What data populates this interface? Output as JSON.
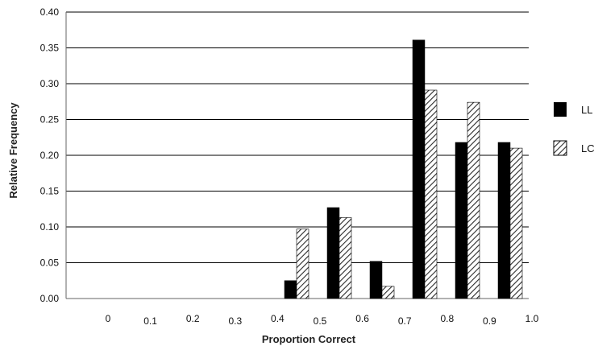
{
  "chart_data": {
    "type": "bar",
    "title": "",
    "xlabel": "Proportion Correct",
    "ylabel": "Relative Frequency",
    "ylim": [
      0,
      0.4
    ],
    "yticks": [
      "0.00",
      "0.05",
      "0.10",
      "0.15",
      "0.20",
      "0.25",
      "0.30",
      "0.35",
      "0.40"
    ],
    "xticks": [
      "0",
      "0.1",
      "0.2",
      "0.3",
      "0.4",
      "0.5",
      "0.6",
      "0.7",
      "0.8",
      "0.9",
      "1.0"
    ],
    "grid": true,
    "legend_position": "right",
    "categories": [
      "0.4–0.5",
      "0.5–0.6",
      "0.6–0.7",
      "0.7–0.8",
      "0.8–0.9",
      "0.9–1.0"
    ],
    "series": [
      {
        "name": "LL",
        "fill": "solid",
        "color": "#000000",
        "values": [
          0.025,
          0.127,
          0.052,
          0.361,
          0.218,
          0.218
        ]
      },
      {
        "name": "LC",
        "fill": "hatched",
        "color": "#2b2b2b",
        "values": [
          0.097,
          0.113,
          0.017,
          0.291,
          0.274,
          0.21
        ]
      }
    ]
  }
}
